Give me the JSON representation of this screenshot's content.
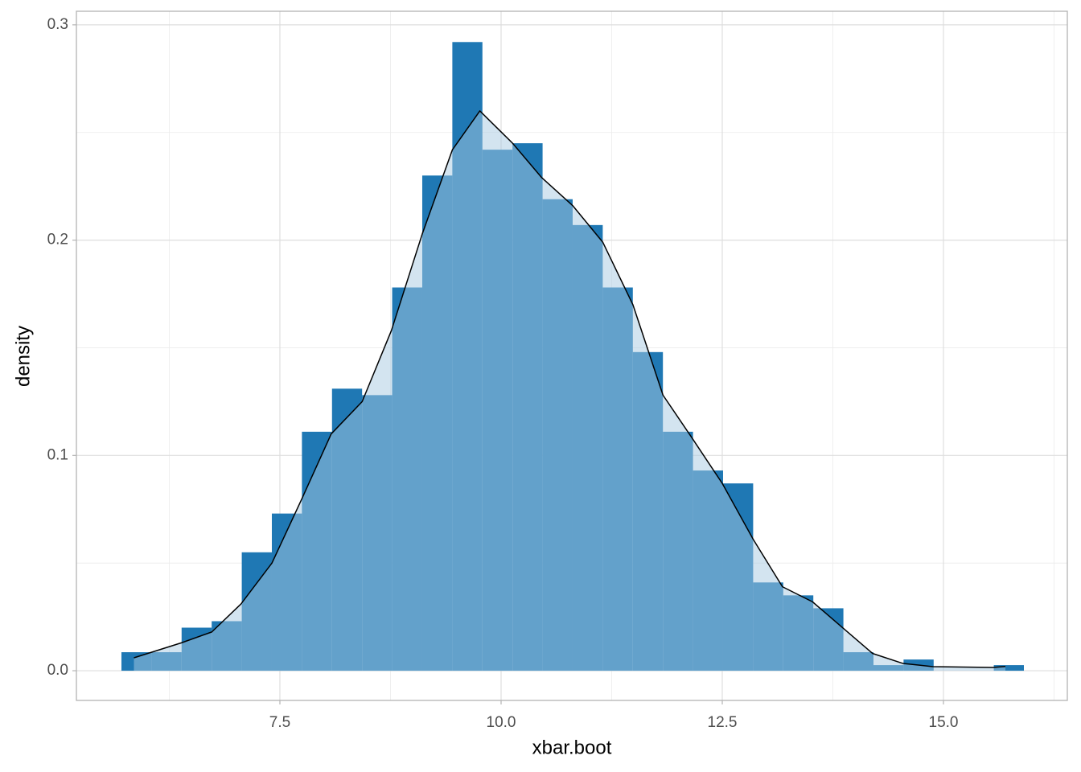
{
  "chart_data": {
    "type": "histogram",
    "x_label": "xbar.boot",
    "y_label": "density",
    "bins": [
      5.709,
      6.049,
      6.389,
      6.729,
      7.069,
      7.409,
      7.749,
      8.089,
      8.429,
      8.769,
      9.109,
      9.449,
      9.789,
      10.129,
      10.469,
      10.809,
      11.149,
      11.489,
      11.829,
      12.169,
      12.509,
      12.849,
      13.189,
      13.529,
      13.869,
      14.209,
      14.549,
      14.889,
      15.229,
      15.569,
      15.909
    ],
    "values": [
      0.0086,
      0.0086,
      0.02,
      0.023,
      0.055,
      0.073,
      0.111,
      0.131,
      0.128,
      0.178,
      0.23,
      0.292,
      0.242,
      0.245,
      0.219,
      0.207,
      0.178,
      0.148,
      0.111,
      0.093,
      0.087,
      0.041,
      0.035,
      0.029,
      0.0086,
      0.0026,
      0.0052,
      0,
      0,
      0.0026
    ],
    "color": "#1f78b4",
    "density": {
      "x": [
        5.85,
        6.39,
        6.73,
        7.06,
        7.41,
        7.75,
        8.08,
        8.43,
        8.76,
        9.11,
        9.45,
        9.76,
        10.13,
        10.46,
        10.81,
        11.15,
        11.49,
        11.83,
        12.16,
        12.5,
        12.85,
        13.18,
        13.52,
        13.86,
        14.2,
        14.54,
        14.88,
        15.56,
        15.7
      ],
      "y": [
        0.006,
        0.013,
        0.018,
        0.031,
        0.05,
        0.08,
        0.11,
        0.125,
        0.158,
        0.203,
        0.242,
        0.26,
        0.245,
        0.229,
        0.216,
        0.199,
        0.17,
        0.128,
        0.108,
        0.087,
        0.061,
        0.039,
        0.032,
        0.02,
        0.008,
        0.0034,
        0.0019,
        0.0015,
        0.002
      ],
      "line_color": "#000000",
      "fill_color": "#a7c9e1",
      "fill_opacity": 0.5
    },
    "xlim": [
      5.2,
      16.4
    ],
    "ylim": [
      -0.0138,
      0.3063
    ],
    "xticks": [
      {
        "value": 7.5,
        "label": "7.5"
      },
      {
        "value": 10,
        "label": "10.0"
      },
      12.5,
      {
        "value": 15,
        "label": "15.0"
      }
    ],
    "yticks": [
      {
        "value": 0,
        "label": "0.0"
      },
      0.1,
      0.2,
      0.3
    ],
    "xminorticks": [
      6.25,
      8.75,
      11.25,
      13.75,
      16.25
    ],
    "yminorticks": [
      0.05,
      0.15,
      0.25
    ],
    "grid": true
  }
}
